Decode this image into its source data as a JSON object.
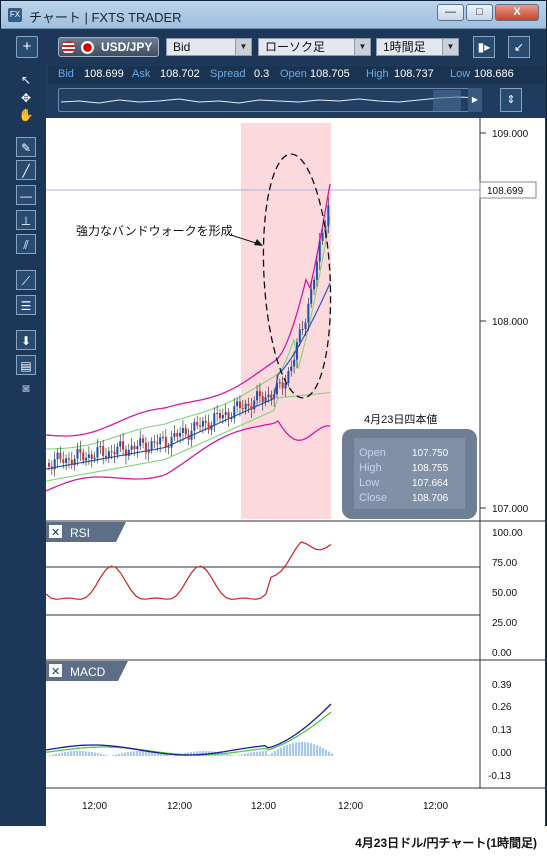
{
  "window": {
    "title": "チャート | FXTS TRADER",
    "app_icon": "FX",
    "minimize": "—",
    "maximize": "□",
    "close": "X"
  },
  "toolbar": {
    "add": "+",
    "pair": "USD/JPY",
    "price_type": "Bid",
    "chart_type": "ローソク足",
    "timeframe": "1時間足"
  },
  "quote": {
    "bid_label": "Bid",
    "bid": "108.699",
    "ask_label": "Ask",
    "ask": "108.702",
    "spread_label": "Spread",
    "spread": "0.3",
    "open_label": "Open",
    "open": "108.705",
    "high_label": "High",
    "high": "108.737",
    "low_label": "Low",
    "low": "108.686"
  },
  "main_chart": {
    "annotation": "強力なバンドウォークを形成",
    "current_price_label": "108.699",
    "y_ticks": [
      "109.000",
      "108.000",
      "107.000"
    ],
    "ohlc_title": "4月23日四本値",
    "ohlc": [
      {
        "label": "Open",
        "value": "107.750"
      },
      {
        "label": "High",
        "value": "108.755"
      },
      {
        "label": "Low",
        "value": "107.664"
      },
      {
        "label": "Close",
        "value": "108.706"
      }
    ]
  },
  "rsi": {
    "title": "RSI",
    "y_ticks": [
      "100.00",
      "75.00",
      "50.00",
      "25.00",
      "0.00"
    ]
  },
  "macd": {
    "title": "MACD",
    "y_ticks": [
      "0.39",
      "0.26",
      "0.13",
      "0.00",
      "-0.13"
    ]
  },
  "x_axis": {
    "ticks": [
      "12:00",
      "12:00",
      "12:00",
      "12:00",
      "12:00"
    ]
  },
  "caption": "4月23日ドル/円チャート(1時間足)",
  "colors": {
    "candle_up": "#1a4fb8",
    "candle_down": "#d42a2a",
    "bollinger_outer": "#d31aa7",
    "bollinger_inner": "#7fd67a",
    "ma": "#2a5cb8",
    "rsi_line": "#cc2222",
    "macd_line": "#1a1aa0",
    "signal_line": "#4ccc44",
    "histogram": "#a8c8f0",
    "highlight": "#fbd9dd"
  }
}
